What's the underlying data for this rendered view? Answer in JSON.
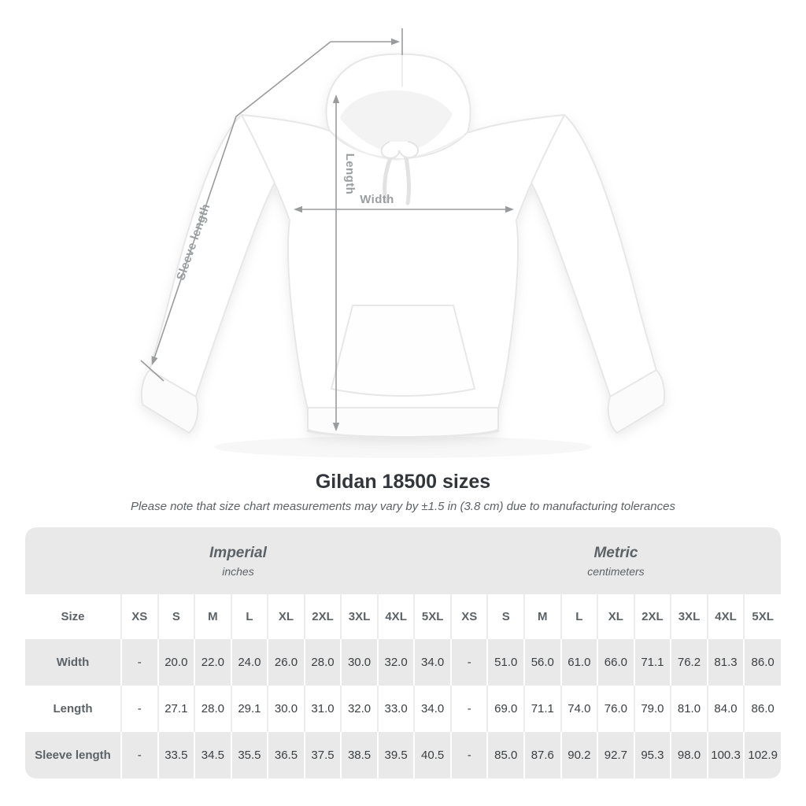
{
  "diagram": {
    "measure_labels": {
      "width": "Width",
      "length": "Length",
      "sleeve_length": "Sleeve length"
    },
    "colors": {
      "dimension_line": "#999b9d",
      "dimension_label": "#9a9ea1"
    }
  },
  "heading": {
    "title": "Gildan 18500 sizes",
    "subtitle": "Please note that size chart measurements may vary by ±1.5 in (3.8 cm) due to manufacturing tolerances"
  },
  "table": {
    "unit_groups": [
      {
        "name": "Imperial",
        "unit": "inches"
      },
      {
        "name": "Metric",
        "unit": "centimeters"
      }
    ],
    "size_header": "Size",
    "sizes": [
      "XS",
      "S",
      "M",
      "L",
      "XL",
      "2XL",
      "3XL",
      "4XL",
      "5XL"
    ],
    "rows": [
      {
        "label": "Width",
        "imperial": [
          "-",
          "20.0",
          "22.0",
          "24.0",
          "26.0",
          "28.0",
          "30.0",
          "32.0",
          "34.0"
        ],
        "metric": [
          "-",
          "51.0",
          "56.0",
          "61.0",
          "66.0",
          "71.1",
          "76.2",
          "81.3",
          "86.0"
        ]
      },
      {
        "label": "Length",
        "imperial": [
          "-",
          "27.1",
          "28.0",
          "29.1",
          "30.0",
          "31.0",
          "32.0",
          "33.0",
          "34.0"
        ],
        "metric": [
          "-",
          "69.0",
          "71.1",
          "74.0",
          "76.0",
          "79.0",
          "81.0",
          "84.0",
          "86.0"
        ]
      },
      {
        "label": "Sleeve length",
        "imperial": [
          "-",
          "33.5",
          "34.5",
          "35.5",
          "36.5",
          "37.5",
          "38.5",
          "39.5",
          "40.5"
        ],
        "metric": [
          "-",
          "85.0",
          "87.6",
          "90.2",
          "92.7",
          "95.3",
          "98.0",
          "100.3",
          "102.9"
        ]
      }
    ],
    "colors": {
      "band": "#e9e9e9",
      "header_text": "#5c6266",
      "value_text": "#3b3f42"
    }
  }
}
